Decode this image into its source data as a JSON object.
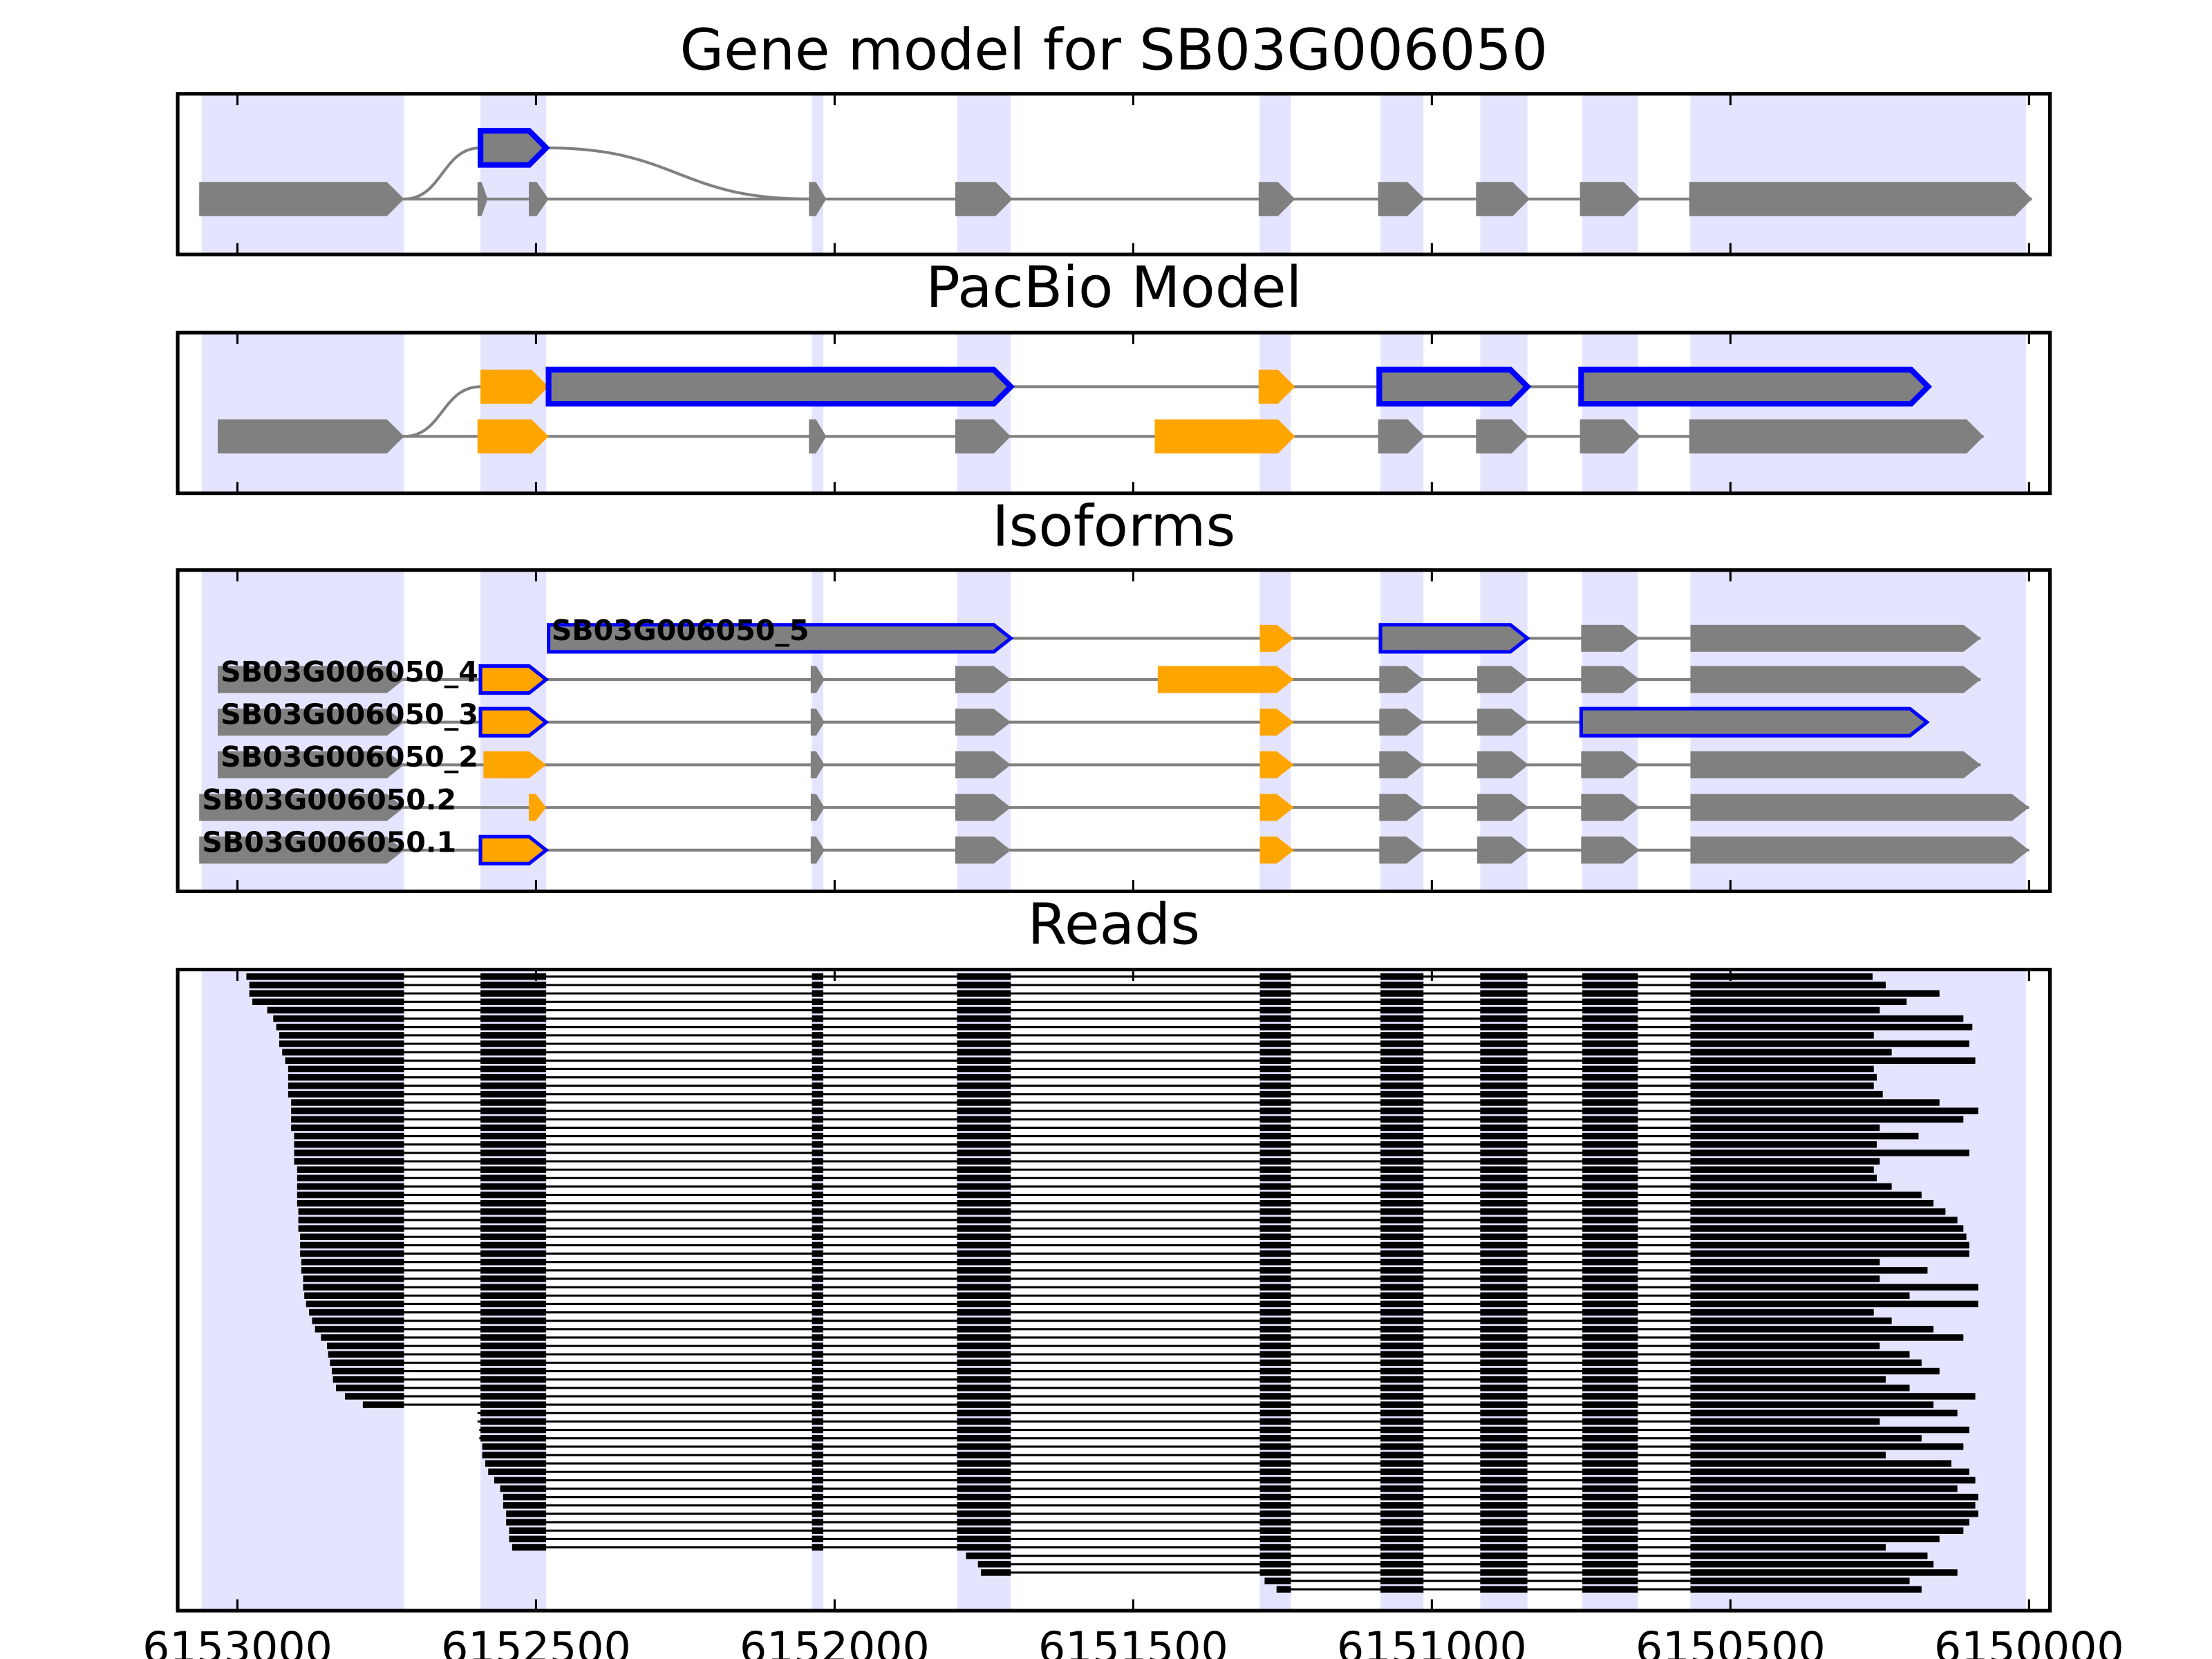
{
  "chart_data": {
    "type": "gene-track",
    "xlim": [
      6153100,
      6149965
    ],
    "xticks": [
      6153000,
      6152500,
      6152000,
      6151500,
      6151000,
      6150500,
      6150000
    ],
    "shade_color": "#e4e4ff",
    "shaded_regions": [
      [
        6153060,
        6152721
      ],
      [
        6152593,
        6152483
      ],
      [
        6152038,
        6152019
      ],
      [
        6151795,
        6151705
      ],
      [
        6151288,
        6151236
      ],
      [
        6151086,
        6151014
      ],
      [
        6150919,
        6150840
      ],
      [
        6150748,
        6150655
      ],
      [
        6150567,
        6150005
      ]
    ],
    "panels": [
      {
        "title": "Gene model for SB03G006050",
        "line_color": "#808080",
        "rows": [
          {
            "exons": [
              [
                6152593,
                6152483,
                "#808080",
                "#0000ff"
              ]
            ]
          },
          {
            "exons": [
              [
                6153064,
                6152721,
                "#808080"
              ],
              [
                6152598,
                6152581,
                "#808080"
              ],
              [
                6152512,
                6152479,
                "#808080"
              ],
              [
                6152043,
                6152014,
                "#808080"
              ],
              [
                6151798,
                6151702,
                "#808080"
              ],
              [
                6151290,
                6151229,
                "#808080"
              ],
              [
                6151090,
                6151012,
                "#808080"
              ],
              [
                6150926,
                6150836,
                "#808080"
              ],
              [
                6150752,
                6150650,
                "#808080"
              ],
              [
                6150569,
                6149995,
                "#808080"
              ]
            ]
          }
        ]
      },
      {
        "title": "PacBio Model",
        "line_color": "#808080",
        "rows": [
          {
            "exons": [
              [
                6152593,
                6152479,
                "#ffa500"
              ],
              [
                6152479,
                6151705,
                "#808080",
                "#0000ff"
              ],
              [
                6151290,
                6151229,
                "#ffa500"
              ],
              [
                6151088,
                6150840,
                "#808080",
                "#0000ff"
              ],
              [
                6150750,
                6150169,
                "#808080",
                "#0000ff"
              ]
            ]
          },
          {
            "exons": [
              [
                6153033,
                6152721,
                "#808080"
              ],
              [
                6152598,
                6152479,
                "#ffa500"
              ],
              [
                6152043,
                6152014,
                "#808080"
              ],
              [
                6151798,
                6151705,
                "#808080"
              ],
              [
                6151464,
                6151229,
                "#ffa500"
              ],
              [
                6151090,
                6151012,
                "#808080"
              ],
              [
                6150926,
                6150838,
                "#808080"
              ],
              [
                6150752,
                6150650,
                "#808080"
              ],
              [
                6150569,
                6150076,
                "#808080"
              ]
            ]
          }
        ]
      },
      {
        "title": "Isoforms",
        "line_color": "#808080",
        "rows": [
          {
            "label": "SB03G006050_5",
            "exons": [
              [
                6152479,
                6151705,
                "#808080",
                "#0000ff"
              ],
              [
                6151288,
                6151231,
                "#ffa500"
              ],
              [
                6151086,
                6150840,
                "#808080",
                "#0000ff"
              ],
              [
                6150750,
                6150652,
                "#808080"
              ],
              [
                6150567,
                6150081,
                "#808080"
              ]
            ]
          },
          {
            "label": "SB03G006050_4",
            "exons": [
              [
                6153033,
                6152721,
                "#808080"
              ],
              [
                6152593,
                6152483,
                "#ffa500",
                "#0000ff"
              ],
              [
                6152040,
                6152017,
                "#808080"
              ],
              [
                6151798,
                6151705,
                "#808080"
              ],
              [
                6151459,
                6151231,
                "#ffa500"
              ],
              [
                6151088,
                6151014,
                "#808080"
              ],
              [
                6150924,
                6150838,
                "#808080"
              ],
              [
                6150750,
                6150652,
                "#808080"
              ],
              [
                6150567,
                6150081,
                "#808080"
              ]
            ]
          },
          {
            "label": "SB03G006050_3",
            "exons": [
              [
                6153033,
                6152721,
                "#808080"
              ],
              [
                6152593,
                6152483,
                "#ffa500",
                "#0000ff"
              ],
              [
                6152040,
                6152017,
                "#808080"
              ],
              [
                6151798,
                6151705,
                "#808080"
              ],
              [
                6151288,
                6151231,
                "#ffa500"
              ],
              [
                6151088,
                6151014,
                "#808080"
              ],
              [
                6150924,
                6150838,
                "#808080"
              ],
              [
                6150750,
                6150171,
                "#808080",
                "#0000ff"
              ]
            ]
          },
          {
            "label": "SB03G006050_2",
            "exons": [
              [
                6153033,
                6152721,
                "#808080"
              ],
              [
                6152588,
                6152483,
                "#ffa500"
              ],
              [
                6152040,
                6152017,
                "#808080"
              ],
              [
                6151798,
                6151705,
                "#808080"
              ],
              [
                6151288,
                6151231,
                "#ffa500"
              ],
              [
                6151088,
                6151014,
                "#808080"
              ],
              [
                6150924,
                6150838,
                "#808080"
              ],
              [
                6150750,
                6150652,
                "#808080"
              ],
              [
                6150567,
                6150081,
                "#808080"
              ]
            ]
          },
          {
            "label": "SB03G006050.2",
            "exons": [
              [
                6153064,
                6152721,
                "#808080"
              ],
              [
                6152512,
                6152483,
                "#ffa500"
              ],
              [
                6152040,
                6152017,
                "#808080"
              ],
              [
                6151798,
                6151705,
                "#808080"
              ],
              [
                6151288,
                6151231,
                "#ffa500"
              ],
              [
                6151088,
                6151014,
                "#808080"
              ],
              [
                6150924,
                6150838,
                "#808080"
              ],
              [
                6150750,
                6150652,
                "#808080"
              ],
              [
                6150567,
                6150000,
                "#808080"
              ]
            ]
          },
          {
            "label": "SB03G006050.1",
            "exons": [
              [
                6153064,
                6152721,
                "#808080"
              ],
              [
                6152593,
                6152483,
                "#ffa500",
                "#0000ff"
              ],
              [
                6152040,
                6152017,
                "#808080"
              ],
              [
                6151798,
                6151705,
                "#808080"
              ],
              [
                6151288,
                6151231,
                "#ffa500"
              ],
              [
                6151088,
                6151014,
                "#808080"
              ],
              [
                6150924,
                6150838,
                "#808080"
              ],
              [
                6150750,
                6150652,
                "#808080"
              ],
              [
                6150567,
                6150000,
                "#808080"
              ]
            ]
          }
        ]
      },
      {
        "title": "Reads",
        "color": "#000000",
        "reads": [
          [
            6152985,
            6150262
          ],
          [
            6152980,
            6150240
          ],
          [
            6152980,
            6150150
          ],
          [
            6152975,
            6150205
          ],
          [
            6152950,
            6150250
          ],
          [
            6152940,
            6150110
          ],
          [
            6152935,
            6150095
          ],
          [
            6152930,
            6150260
          ],
          [
            6152930,
            6150100
          ],
          [
            6152925,
            6150230
          ],
          [
            6152920,
            6150090
          ],
          [
            6152915,
            6150260
          ],
          [
            6152915,
            6150255
          ],
          [
            6152915,
            6150260
          ],
          [
            6152915,
            6150245
          ],
          [
            6152910,
            6150150
          ],
          [
            6152910,
            6150085
          ],
          [
            6152910,
            6150110
          ],
          [
            6152910,
            6150250
          ],
          [
            6152905,
            6150185
          ],
          [
            6152905,
            6150255
          ],
          [
            6152905,
            6150100
          ],
          [
            6152905,
            6150250
          ],
          [
            6152900,
            6150260
          ],
          [
            6152900,
            6150255
          ],
          [
            6152900,
            6150230
          ],
          [
            6152900,
            6150180
          ],
          [
            6152900,
            6150160
          ],
          [
            6152898,
            6150140
          ],
          [
            6152898,
            6150120
          ],
          [
            6152898,
            6150110
          ],
          [
            6152895,
            6150105
          ],
          [
            6152895,
            6150100
          ],
          [
            6152895,
            6150100
          ],
          [
            6152893,
            6150250
          ],
          [
            6152893,
            6150170
          ],
          [
            6152890,
            6150250
          ],
          [
            6152890,
            6150085
          ],
          [
            6152888,
            6150200
          ],
          [
            6152885,
            6150085
          ],
          [
            6152880,
            6150260
          ],
          [
            6152875,
            6150230
          ],
          [
            6152870,
            6150160
          ],
          [
            6152860,
            6150110
          ],
          [
            6152850,
            6150250
          ],
          [
            6152848,
            6150200
          ],
          [
            6152845,
            6150180
          ],
          [
            6152842,
            6150150
          ],
          [
            6152840,
            6150240
          ],
          [
            6152835,
            6150200
          ],
          [
            6152820,
            6150090
          ],
          [
            6152790,
            6150160
          ],
          [
            6152598,
            6150120
          ],
          [
            6152598,
            6150250
          ],
          [
            6152595,
            6150100
          ],
          [
            6152595,
            6150180
          ],
          [
            6152590,
            6150110
          ],
          [
            6152590,
            6150240
          ],
          [
            6152585,
            6150130
          ],
          [
            6152580,
            6150100
          ],
          [
            6152570,
            6150090
          ],
          [
            6152560,
            6150120
          ],
          [
            6152555,
            6150085
          ],
          [
            6152555,
            6150090
          ],
          [
            6152550,
            6150085
          ],
          [
            6152550,
            6150100
          ],
          [
            6152545,
            6150110
          ],
          [
            6152545,
            6150150
          ],
          [
            6152540,
            6150240
          ],
          [
            6151780,
            6150170
          ],
          [
            6151760,
            6150160
          ],
          [
            6151755,
            6150120
          ],
          [
            6151280,
            6150200
          ],
          [
            6151260,
            6150180
          ]
        ]
      }
    ]
  }
}
